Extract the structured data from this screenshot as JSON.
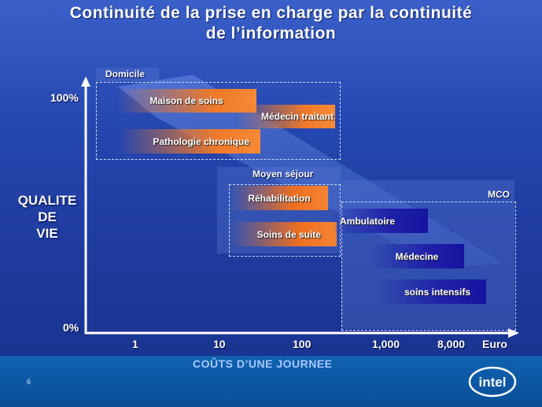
{
  "slide": {
    "title_line1": "Continuité de la prise en charge par la continuité",
    "title_line2": "de l’information",
    "page_number": "6",
    "logo_text": "intel"
  },
  "axes": {
    "y_title_lines": [
      "QUALITE",
      "DE",
      "VIE"
    ],
    "y_ticks": [
      "100%",
      "0%"
    ],
    "x_title": "COÛTS  D’UNE JOURNEE",
    "x_ticks": [
      "1",
      "10",
      "100",
      "1,000",
      "8,000",
      "Euro"
    ]
  },
  "regions": [
    {
      "label": "Domicile"
    },
    {
      "label": "Moyen séjour"
    },
    {
      "label": "MCO"
    }
  ],
  "bars": {
    "domicile": [
      "Maison de soins",
      "Médecin traitant",
      "Pathologie chronique"
    ],
    "moyen_sejour": [
      "Réhabilitation",
      "Soins de suite"
    ],
    "mco": [
      "Ambulatoire",
      "Médecine",
      "soins intensifs"
    ]
  },
  "colors": {
    "background": "#1d3a9c",
    "orange": "#f07a2a",
    "navy": "#1414a0",
    "footer": "#0a4e98"
  }
}
